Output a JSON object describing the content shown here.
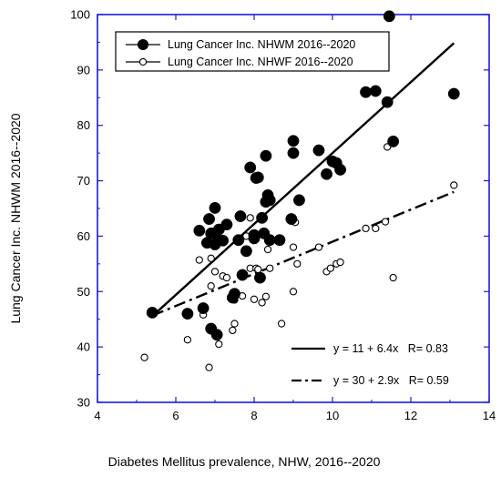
{
  "chart_data": {
    "type": "scatter",
    "xlabel": "Diabetes Mellitus prevalence, NHW, 2016--2020",
    "ylabel": "Lung Cancer Inc. NHWM 2016--2020",
    "xlim": [
      4,
      14
    ],
    "ylim": [
      30,
      100
    ],
    "xticks": [
      "4",
      "6",
      "8",
      "10",
      "12",
      "14"
    ],
    "yticks": [
      "30",
      "40",
      "50",
      "60",
      "70",
      "80",
      "90",
      "100"
    ],
    "grid": false,
    "legend_position": "top-left",
    "frame_color": "#1a1adc",
    "series": [
      {
        "name": "Lung Cancer Inc. NHWM 2016--2020",
        "marker": "filled-circle",
        "color": "#000000",
        "x": [
          5.4,
          6.3,
          6.6,
          6.7,
          6.8,
          6.85,
          6.9,
          6.9,
          7.0,
          7.0,
          7.0,
          7.05,
          7.1,
          7.2,
          7.3,
          7.45,
          7.5,
          7.6,
          7.65,
          7.7,
          7.8,
          7.9,
          8.0,
          8.0,
          8.05,
          8.1,
          8.15,
          8.2,
          8.25,
          8.3,
          8.3,
          8.35,
          8.4,
          8.4,
          8.65,
          8.95,
          9.0,
          9.0,
          9.15,
          9.65,
          9.85,
          10.0,
          10.1,
          10.2,
          10.85,
          11.1,
          11.4,
          11.45,
          11.55,
          13.1
        ],
        "y": [
          46.2,
          46.0,
          61.0,
          47.0,
          58.8,
          63.1,
          43.3,
          60.5,
          65.1,
          60.4,
          58.5,
          42.2,
          61.2,
          59.2,
          62.1,
          48.9,
          49.6,
          59.3,
          63.6,
          53.0,
          57.3,
          72.4,
          60.2,
          59.6,
          70.5,
          70.6,
          52.5,
          63.3,
          60.5,
          66.2,
          74.5,
          67.4,
          66.5,
          59.3,
          59.3,
          63.1,
          75.0,
          77.2,
          66.5,
          75.5,
          71.2,
          73.5,
          73.2,
          72.0,
          86.0,
          86.2,
          84.2,
          99.7,
          77.1,
          85.7
        ]
      },
      {
        "name": "Lung Cancer Inc. NHWF 2016--2020",
        "marker": "open-circle",
        "color": "#000000",
        "x": [
          5.2,
          6.3,
          6.6,
          6.7,
          6.85,
          6.9,
          6.9,
          7.0,
          7.1,
          7.2,
          7.3,
          7.45,
          7.5,
          7.5,
          7.7,
          7.8,
          7.9,
          7.9,
          8.0,
          8.05,
          8.1,
          8.2,
          8.3,
          8.35,
          8.4,
          8.7,
          9.0,
          9.0,
          9.05,
          9.1,
          9.65,
          9.85,
          9.95,
          10.1,
          10.2,
          10.85,
          11.1,
          11.35,
          11.4,
          11.55,
          13.1
        ],
        "y": [
          38.1,
          41.3,
          55.7,
          45.8,
          36.3,
          56.0,
          51.0,
          53.6,
          40.5,
          52.8,
          52.5,
          43.0,
          44.2,
          48.5,
          49.2,
          60.0,
          63.3,
          54.2,
          48.6,
          54.2,
          54.0,
          48.0,
          49.1,
          57.6,
          54.2,
          44.2,
          58.0,
          50.0,
          62.5,
          55.0,
          58.0,
          53.6,
          54.2,
          55.0,
          55.3,
          61.4,
          61.4,
          62.6,
          76.1,
          52.5,
          69.2
        ]
      }
    ],
    "fits": [
      {
        "label": "y = 11 + 6.4x   R= 0.83",
        "intercept": 11,
        "slope": 6.4,
        "x_range": [
          5.4,
          13.1
        ],
        "style": "solid"
      },
      {
        "label": "y = 30 + 2.9x   R= 0.59",
        "intercept": 30,
        "slope": 2.9,
        "x_range": [
          5.4,
          13.1
        ],
        "style": "dash-dot"
      }
    ]
  }
}
